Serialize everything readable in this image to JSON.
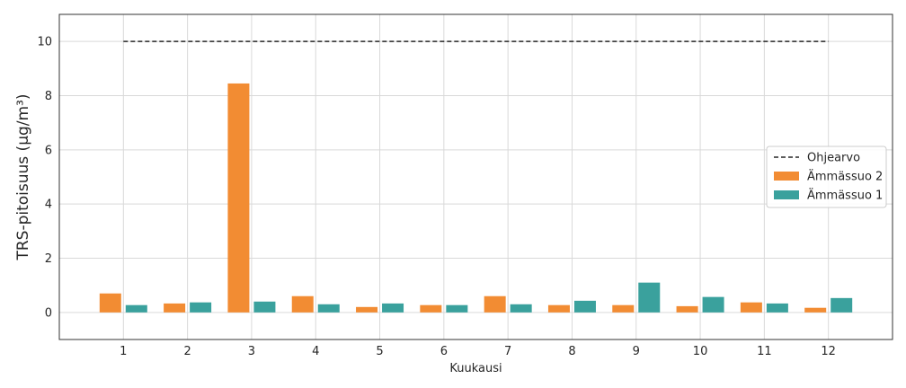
{
  "chart_data": {
    "type": "bar",
    "categories": [
      "1",
      "2",
      "3",
      "4",
      "5",
      "6",
      "7",
      "8",
      "9",
      "10",
      "11",
      "12"
    ],
    "series": [
      {
        "name": "Ämmässuo 2",
        "color": "#f28c33",
        "values": [
          0.7,
          0.33,
          8.45,
          0.6,
          0.2,
          0.27,
          0.6,
          0.27,
          0.27,
          0.23,
          0.37,
          0.17
        ]
      },
      {
        "name": "Ämmässuo 1",
        "color": "#3aa19d",
        "values": [
          0.27,
          0.37,
          0.4,
          0.3,
          0.33,
          0.27,
          0.3,
          0.43,
          1.1,
          0.57,
          0.33,
          0.53
        ]
      }
    ],
    "reference_line": {
      "name": "Ohjearvo",
      "value": 10,
      "color": "#262626",
      "style": "dashed"
    },
    "xlabel": "Kuukausi",
    "ylabel": "TRS-pitoisuus (µg/m³)",
    "ylim": [
      -1,
      11
    ],
    "yticks": [
      0,
      2,
      4,
      6,
      8,
      10
    ],
    "grid": true,
    "legend_position": "center-right"
  }
}
